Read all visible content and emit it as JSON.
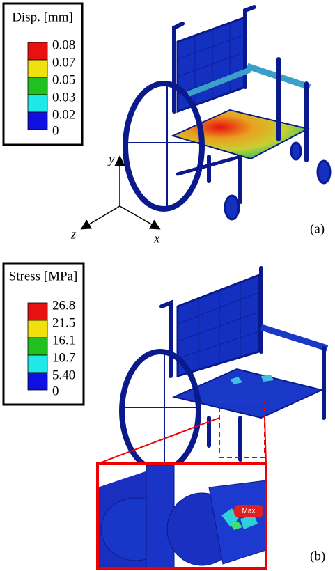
{
  "panel_a": {
    "legend": {
      "title": "Disp. [mm]",
      "labels": [
        "0.08",
        "0.07",
        "0.05",
        "0.03",
        "0.02",
        "0"
      ]
    },
    "axes": {
      "y": "y",
      "z": "z",
      "x": "x"
    },
    "label": "(a)"
  },
  "panel_b": {
    "legend": {
      "title": "Stress [MPa]",
      "labels": [
        "26.8",
        "21.5",
        "16.1",
        "10.7",
        "5.40",
        "0"
      ]
    },
    "max_label": "Max",
    "label": "(b)"
  }
}
